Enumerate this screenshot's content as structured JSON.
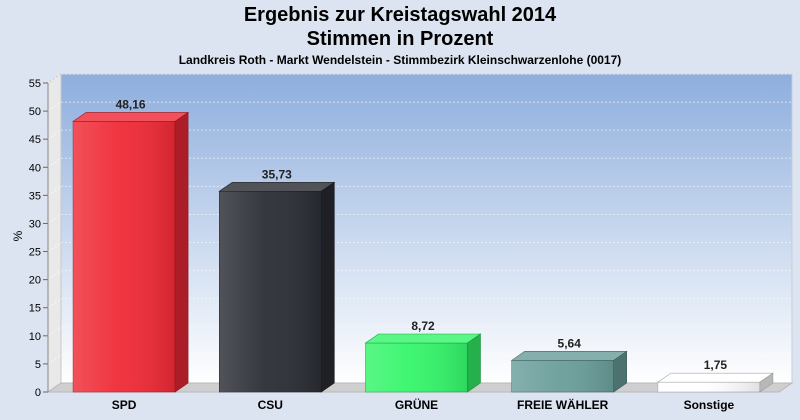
{
  "header": {
    "title": "Ergebnis zur Kreistagswahl 2014",
    "subtitle": "Stimmen in Prozent",
    "location": "Landkreis Roth - Markt Wendelstein - Stimmbezirk Kleinschwarzenlohe (0017)"
  },
  "chart_data": {
    "type": "bar",
    "title": "Ergebnis zur Kreistagswahl 2014",
    "subtitle": "Stimmen in Prozent",
    "caption": "Landkreis Roth - Markt Wendelstein - Stimmbezirk Kleinschwarzenlohe (0017)",
    "xlabel": "",
    "ylabel": "%",
    "ylim": [
      0,
      55
    ],
    "yticks": [
      0,
      5,
      10,
      15,
      20,
      25,
      30,
      35,
      40,
      45,
      50,
      55
    ],
    "grid": true,
    "categories": [
      "SPD",
      "CSU",
      "GRÜNE",
      "FREIE WÄHLER",
      "Sonstige"
    ],
    "values": [
      48.16,
      35.73,
      8.72,
      5.64,
      1.75
    ],
    "value_labels": [
      "48,16",
      "35,73",
      "8,72",
      "5,64",
      "1,75"
    ],
    "colors": [
      "#ef2a36",
      "#2b2d35",
      "#34f56a",
      "#6a9e9a",
      "#ffffff"
    ]
  }
}
